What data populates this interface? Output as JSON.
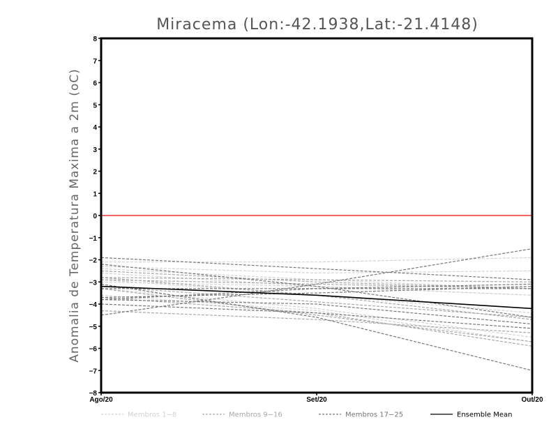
{
  "chart_data": {
    "type": "line",
    "title": "Miracema (Lon:-42.1938,Lat:-21.4148)",
    "ylabel": "Anomalia de Temperatura Maxima a 2m (oC)",
    "xlabel": "",
    "categories": [
      "Ago/20",
      "Set/20",
      "Out/20"
    ],
    "ylim": [
      -8,
      8
    ],
    "yticks": [
      -8,
      -7,
      -6,
      -5,
      -4,
      -3,
      -2,
      -1,
      0,
      1,
      2,
      3,
      4,
      5,
      6,
      7,
      8
    ],
    "reference_line": {
      "value": 0,
      "color": "#ee3333"
    },
    "legend": [
      {
        "label": "Membros 1-8",
        "color": "#d2d2d2",
        "dashed": true
      },
      {
        "label": "Membros 9-16",
        "color": "#a8a8a8",
        "dashed": true
      },
      {
        "label": "Membros 17-25",
        "color": "#777777",
        "dashed": true
      },
      {
        "label": "Ensemble Mean",
        "color": "#000000",
        "dashed": false
      }
    ],
    "series": [
      {
        "name": "Membro 1",
        "group": 0,
        "values": [
          -2.3,
          -2.6,
          -2.5
        ]
      },
      {
        "name": "Membro 2",
        "group": 0,
        "values": [
          -2.6,
          -3.2,
          -3.6
        ]
      },
      {
        "name": "Membro 3",
        "group": 0,
        "values": [
          -2.9,
          -3.6,
          -4.4
        ]
      },
      {
        "name": "Membro 4",
        "group": 0,
        "values": [
          -3.3,
          -4.2,
          -5.5
        ]
      },
      {
        "name": "Membro 5",
        "group": 0,
        "values": [
          -3.6,
          -4.3,
          -5.7
        ]
      },
      {
        "name": "Membro 6",
        "group": 0,
        "values": [
          -2.4,
          -2.9,
          -3.3
        ]
      },
      {
        "name": "Membro 7",
        "group": 0,
        "values": [
          -2.1,
          -2.1,
          -1.9
        ]
      },
      {
        "name": "Membro 8",
        "group": 0,
        "values": [
          -3.0,
          -3.2,
          -3.6
        ]
      },
      {
        "name": "Membro 9",
        "group": 1,
        "values": [
          -2.5,
          -3.0,
          -3.3
        ]
      },
      {
        "name": "Membro 10",
        "group": 1,
        "values": [
          -3.2,
          -3.9,
          -4.6
        ]
      },
      {
        "name": "Membro 11",
        "group": 1,
        "values": [
          -2.8,
          -3.6,
          -4.7
        ]
      },
      {
        "name": "Membro 12",
        "group": 1,
        "values": [
          -4.3,
          -4.7,
          -5.3
        ]
      },
      {
        "name": "Membro 13",
        "group": 1,
        "values": [
          -3.3,
          -4.5,
          -5.7
        ]
      },
      {
        "name": "Membro 14",
        "group": 1,
        "values": [
          -2.8,
          -2.9,
          -3.0
        ]
      },
      {
        "name": "Membro 15",
        "group": 1,
        "values": [
          -3.7,
          -4.4,
          -5.9
        ]
      },
      {
        "name": "Membro 16",
        "group": 1,
        "values": [
          -2.9,
          -3.1,
          -3.3
        ]
      },
      {
        "name": "Membro 17",
        "group": 2,
        "values": [
          -1.9,
          -2.4,
          -2.9
        ]
      },
      {
        "name": "Membro 18",
        "group": 2,
        "values": [
          -2.2,
          -3.2,
          -4.6
        ]
      },
      {
        "name": "Membro 19",
        "group": 2,
        "values": [
          -4.5,
          -3.1,
          -1.5
        ]
      },
      {
        "name": "Membro 20",
        "group": 2,
        "values": [
          -3.8,
          -3.3,
          -3.1
        ]
      },
      {
        "name": "Membro 21",
        "group": 2,
        "values": [
          -3.7,
          -3.5,
          -3.2
        ]
      },
      {
        "name": "Membro 22",
        "group": 2,
        "values": [
          -3.1,
          -4.6,
          -7.0
        ]
      },
      {
        "name": "Membro 23",
        "group": 2,
        "values": [
          -4.0,
          -4.4,
          -5.1
        ]
      },
      {
        "name": "Membro 24",
        "group": 2,
        "values": [
          -3.3,
          -3.3,
          -3.3
        ]
      },
      {
        "name": "Membro 25",
        "group": 2,
        "values": [
          -3.8,
          -4.0,
          -4.9
        ]
      },
      {
        "name": "Ensemble Mean",
        "group": 3,
        "values": [
          -3.2,
          -3.6,
          -4.2
        ]
      }
    ]
  }
}
